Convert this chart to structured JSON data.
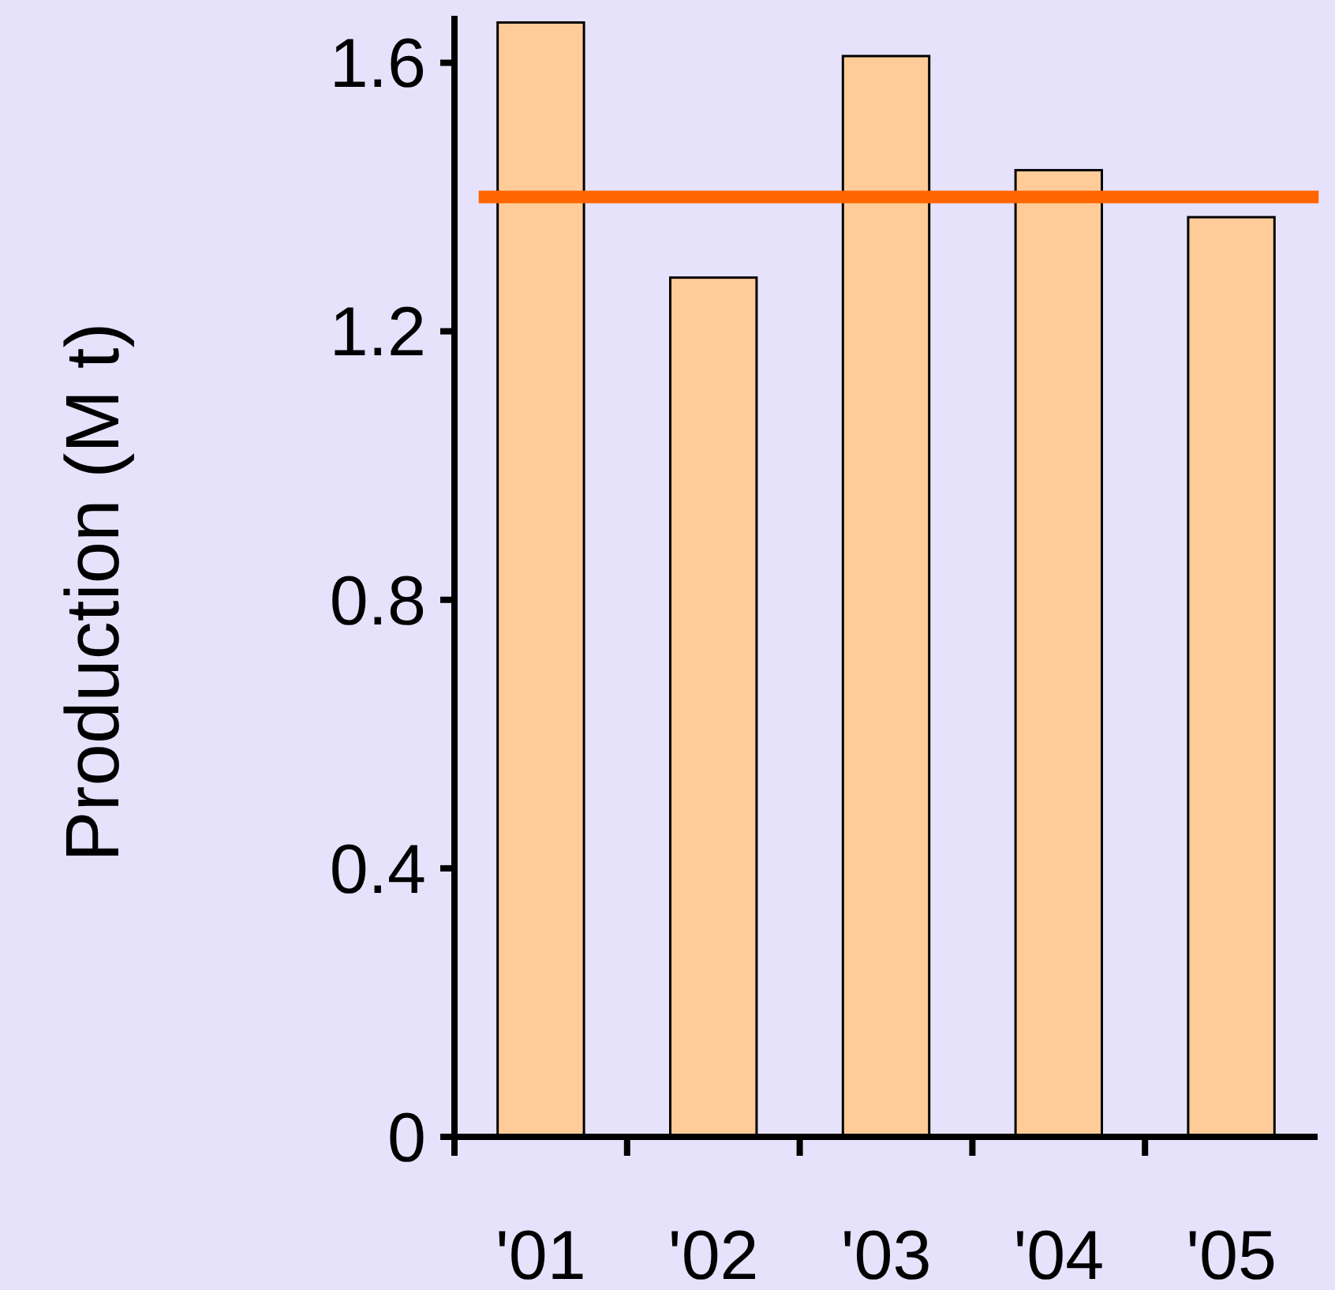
{
  "chart_data": {
    "type": "bar",
    "ylabel": "Production (M t)",
    "categories": [
      "'01",
      "'02",
      "'03",
      "'04",
      "'05"
    ],
    "values": [
      1.66,
      1.28,
      1.61,
      1.44,
      1.37
    ],
    "color": "#ffcc99",
    "ylim": [
      0,
      1.67
    ],
    "yticks": [
      0,
      {
        "value": 0.4,
        "label": "0.4"
      },
      {
        "value": 0.8,
        "label": "0.8"
      },
      {
        "value": 1.2,
        "label": "1.2"
      },
      {
        "value": 1.6,
        "label": "1.6"
      }
    ],
    "ref_lines": [
      {
        "axis": "y",
        "value": 1.4,
        "color": "#ff6600"
      }
    ],
    "grid": false
  }
}
